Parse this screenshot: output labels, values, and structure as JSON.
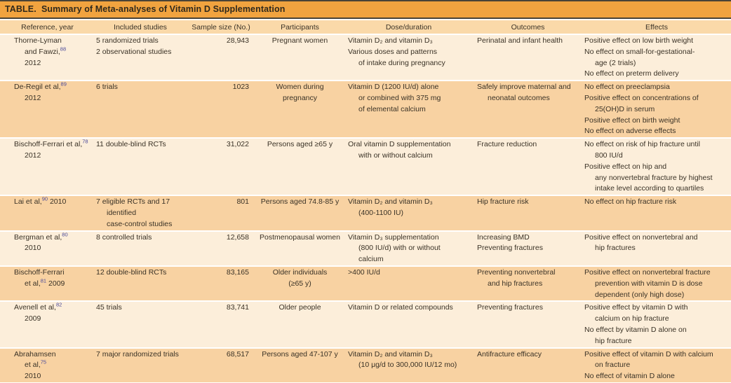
{
  "title": "TABLE.  Summary of Meta-analyses of Vitamin D Supplementation",
  "colors": {
    "title_bar": "#F1A33F",
    "header_bg": "#FAD9A9",
    "row_light": "#FCEEDA",
    "row_dark": "#F8D2A2",
    "rule": "#4a4336",
    "text": "#3a3226",
    "reference_superscript": "#4A4A9A"
  },
  "table": {
    "columns": [
      "Reference, year",
      "Included studies",
      "Sample size (No.)",
      "Participants",
      "Dose/duration",
      "Outcomes",
      "Effects"
    ],
    "rows": [
      {
        "reference": [
          {
            "t": "Thorne-Lyman",
            "i": 0
          },
          {
            "t": "and Fawzi,",
            "i": 1,
            "sup": "88"
          },
          {
            "t": "2012",
            "i": 1
          }
        ],
        "studies": [
          {
            "t": "5 randomized trials",
            "i": 0
          },
          {
            "t": "2 observational studies",
            "i": 0
          }
        ],
        "sample": "28,943",
        "participants": [
          "Pregnant women"
        ],
        "dose": [
          {
            "t": "Vitamin D₂ and vitamin D₃",
            "i": 0
          },
          {
            "t": "Various doses and patterns",
            "i": 0
          },
          {
            "t": "of intake during pregnancy",
            "i": 1
          }
        ],
        "outcomes": [
          {
            "t": "Perinatal and infant health",
            "i": 0
          }
        ],
        "effects": [
          {
            "t": "Positive effect on low birth weight",
            "i": 0
          },
          {
            "t": "No effect on small-for-gestational-",
            "i": 0
          },
          {
            "t": "age (2 trials)",
            "i": 1
          },
          {
            "t": "No effect on preterm delivery",
            "i": 0
          }
        ]
      },
      {
        "reference": [
          {
            "t": "De-Regil et al,",
            "i": 0,
            "sup": "89"
          },
          {
            "t": "2012",
            "i": 1
          }
        ],
        "studies": [
          {
            "t": "6 trials",
            "i": 0
          }
        ],
        "sample": "1023",
        "participants": [
          "Women during",
          "pregnancy"
        ],
        "dose": [
          {
            "t": "Vitamin D (1200 IU/d) alone",
            "i": 0
          },
          {
            "t": "or combined with 375 mg",
            "i": 1
          },
          {
            "t": "of elemental calcium",
            "i": 1
          }
        ],
        "outcomes": [
          {
            "t": "Safely improve maternal and",
            "i": 0
          },
          {
            "t": "neonatal outcomes",
            "i": 1
          }
        ],
        "effects": [
          {
            "t": "No effect on preeclampsia",
            "i": 0
          },
          {
            "t": "Positive effect on concentrations of",
            "i": 0
          },
          {
            "t": "25(OH)D in serum",
            "i": 1
          },
          {
            "t": "Positive effect on birth weight",
            "i": 0
          },
          {
            "t": "No effect on adverse effects",
            "i": 0
          }
        ]
      },
      {
        "reference": [
          {
            "t": "Bischoff-Ferrari et al,",
            "i": 0,
            "sup": "78"
          },
          {
            "t": "2012",
            "i": 1
          }
        ],
        "studies": [
          {
            "t": "11 double-blind RCTs",
            "i": 0
          }
        ],
        "sample": "31,022",
        "participants": [
          "Persons aged ≥65 y"
        ],
        "dose": [
          {
            "t": "Oral vitamin D supplementation",
            "i": 0
          },
          {
            "t": "with or without calcium",
            "i": 1
          }
        ],
        "outcomes": [
          {
            "t": "Fracture reduction",
            "i": 0
          }
        ],
        "effects": [
          {
            "t": "No effect on risk of hip fracture until",
            "i": 0
          },
          {
            "t": "800 IU/d",
            "i": 1
          },
          {
            "t": "Positive effect on hip and",
            "i": 0
          },
          {
            "t": "any nonvertebral fracture by highest",
            "i": 1
          },
          {
            "t": "intake level according to quartiles",
            "i": 1
          }
        ]
      },
      {
        "reference": [
          {
            "t": "Lai et al,",
            "i": 0,
            "sup": "90",
            "t2": " 2010"
          }
        ],
        "studies": [
          {
            "t": "7 eligible RCTs and 17",
            "i": 0
          },
          {
            "t": "identified",
            "i": 1
          },
          {
            "t": "case-control studies",
            "i": 1
          }
        ],
        "sample": "801",
        "participants": [
          "Persons aged 74.8-85 y"
        ],
        "dose": [
          {
            "t": "Vitamin D₂ and vitamin D₃",
            "i": 0
          },
          {
            "t": "(400-1100 IU)",
            "i": 1
          }
        ],
        "outcomes": [
          {
            "t": "Hip fracture risk",
            "i": 0
          }
        ],
        "effects": [
          {
            "t": "No effect on hip fracture risk",
            "i": 0
          }
        ]
      },
      {
        "reference": [
          {
            "t": "Bergman et al,",
            "i": 0,
            "sup": "80"
          },
          {
            "t": "2010",
            "i": 1
          }
        ],
        "studies": [
          {
            "t": "8 controlled trials",
            "i": 0
          }
        ],
        "sample": "12,658",
        "participants": [
          "Postmenopausal women"
        ],
        "dose": [
          {
            "t": "Vitamin D₃ supplementation",
            "i": 0
          },
          {
            "t": "(800 IU/d) with or without",
            "i": 1
          },
          {
            "t": "calcium",
            "i": 1
          }
        ],
        "outcomes": [
          {
            "t": "Increasing BMD",
            "i": 0
          },
          {
            "t": "Preventing fractures",
            "i": 0
          }
        ],
        "effects": [
          {
            "t": "Positive effect on nonvertebral and",
            "i": 0
          },
          {
            "t": "hip fractures",
            "i": 1
          }
        ]
      },
      {
        "reference": [
          {
            "t": "Bischoff-Ferrari",
            "i": 0
          },
          {
            "t": "et al,",
            "i": 1,
            "sup": "81",
            "t2": " 2009"
          }
        ],
        "studies": [
          {
            "t": "12 double-blind RCTs",
            "i": 0
          }
        ],
        "sample": "83,165",
        "participants": [
          "Older individuals",
          "(≥65 y)"
        ],
        "dose": [
          {
            "t": ">400 IU/d",
            "i": 0
          }
        ],
        "outcomes": [
          {
            "t": "Preventing nonvertebral",
            "i": 0
          },
          {
            "t": "and hip fractures",
            "i": 1
          }
        ],
        "effects": [
          {
            "t": "Positive effect on nonvertebral fracture",
            "i": 0
          },
          {
            "t": "prevention with vitamin D is dose",
            "i": 1
          },
          {
            "t": "dependent (only high dose)",
            "i": 1
          }
        ]
      },
      {
        "reference": [
          {
            "t": "Avenell et al,",
            "i": 0,
            "sup": "82"
          },
          {
            "t": "2009",
            "i": 1
          }
        ],
        "studies": [
          {
            "t": "45 trials",
            "i": 0
          }
        ],
        "sample": "83,741",
        "participants": [
          "Older people"
        ],
        "dose": [
          {
            "t": "Vitamin D or related compounds",
            "i": 0
          }
        ],
        "outcomes": [
          {
            "t": "Preventing fractures",
            "i": 0
          }
        ],
        "effects": [
          {
            "t": "Positive effect by vitamin D with",
            "i": 0
          },
          {
            "t": "calcium on hip fracture",
            "i": 1
          },
          {
            "t": "No effect by vitamin D alone on",
            "i": 0
          },
          {
            "t": "hip fracture",
            "i": 1
          }
        ]
      },
      {
        "reference": [
          {
            "t": "Abrahamsen",
            "i": 0
          },
          {
            "t": "et al,",
            "i": 1,
            "sup": "75"
          },
          {
            "t": "2010",
            "i": 1
          }
        ],
        "studies": [
          {
            "t": "7 major randomized trials",
            "i": 0
          }
        ],
        "sample": "68,517",
        "participants": [
          "Persons aged 47-107 y"
        ],
        "dose": [
          {
            "t": "Vitamin D₂ and vitamin D₃",
            "i": 0
          },
          {
            "t": "(10 μg/d to 300,000 IU/12 mo)",
            "i": 1
          }
        ],
        "outcomes": [
          {
            "t": "Antifracture efficacy",
            "i": 0
          }
        ],
        "effects": [
          {
            "t": "Positive effect of vitamin D with calcium",
            "i": 0
          },
          {
            "t": "on fracture",
            "i": 1
          },
          {
            "t": "No effect of vitamin D alone",
            "i": 0
          }
        ]
      }
    ]
  }
}
